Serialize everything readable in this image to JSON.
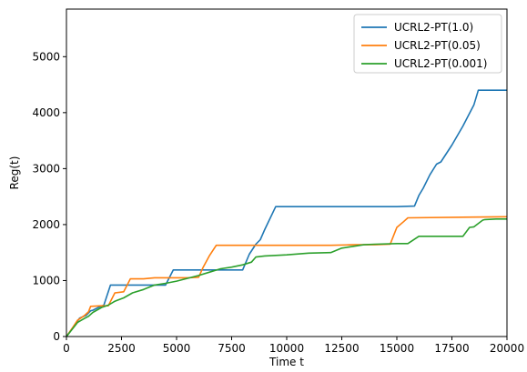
{
  "chart_data": {
    "type": "line",
    "xlabel": "Time t",
    "ylabel": "Reg(t)",
    "xlim": [
      0,
      20000
    ],
    "ylim": [
      0,
      5850
    ],
    "xticks": [
      0,
      2500,
      5000,
      7500,
      10000,
      12500,
      15000,
      17500,
      20000
    ],
    "yticks": [
      0,
      1000,
      2000,
      3000,
      4000,
      5000
    ],
    "grid": false,
    "legend_position": "top-right",
    "series": [
      {
        "name": "UCRL2-PT(1.0)",
        "color": "#1f77b4",
        "x": [
          0,
          300,
          600,
          900,
          1100,
          1200,
          1500,
          1700,
          2000,
          2500,
          3000,
          3500,
          4000,
          4500,
          4850,
          5000,
          5500,
          6000,
          6500,
          7000,
          7500,
          8000,
          8300,
          8600,
          8800,
          9000,
          9500,
          10000,
          11000,
          12000,
          13000,
          14000,
          15000,
          15800,
          16000,
          16200,
          16500,
          16800,
          17000,
          17500,
          18000,
          18500,
          18700,
          19000,
          19500,
          20000
        ],
        "y": [
          0,
          160,
          330,
          380,
          460,
          470,
          530,
          560,
          920,
          920,
          920,
          920,
          920,
          920,
          1190,
          1190,
          1190,
          1190,
          1190,
          1190,
          1190,
          1190,
          1470,
          1650,
          1730,
          1910,
          2320,
          2320,
          2320,
          2320,
          2320,
          2320,
          2320,
          2330,
          2520,
          2650,
          2890,
          3080,
          3120,
          3420,
          3760,
          4140,
          4400,
          4400,
          4400,
          4400
        ]
      },
      {
        "name": "UCRL2-PT(0.05)",
        "color": "#ff7f0e",
        "x": [
          0,
          300,
          500,
          800,
          1000,
          1100,
          1600,
          1900,
          2200,
          2600,
          2900,
          3500,
          4000,
          4500,
          5000,
          5500,
          6000,
          6200,
          6500,
          6800,
          7500,
          8000,
          8500,
          9000,
          10000,
          11000,
          12000,
          13000,
          14000,
          14700,
          15000,
          15300,
          15500,
          20000
        ],
        "y": [
          0,
          170,
          290,
          370,
          440,
          540,
          550,
          550,
          780,
          800,
          1030,
          1030,
          1050,
          1050,
          1050,
          1050,
          1060,
          1230,
          1450,
          1630,
          1630,
          1630,
          1630,
          1630,
          1630,
          1630,
          1630,
          1640,
          1640,
          1650,
          1950,
          2050,
          2120,
          2140
        ]
      },
      {
        "name": "UCRL2-PT(0.001)",
        "color": "#2ca02c",
        "x": [
          0,
          300,
          500,
          800,
          1000,
          1200,
          1600,
          1900,
          2200,
          2600,
          3000,
          3500,
          4000,
          4500,
          5000,
          5500,
          6000,
          6500,
          7000,
          7500,
          8000,
          8400,
          8600,
          9000,
          10000,
          11000,
          12000,
          12500,
          13000,
          13500,
          14000,
          15000,
          15500,
          16000,
          17000,
          18000,
          18300,
          18500,
          18900,
          19000,
          19500,
          20000
        ],
        "y": [
          0,
          150,
          250,
          320,
          360,
          430,
          520,
          560,
          630,
          690,
          780,
          840,
          920,
          950,
          990,
          1040,
          1090,
          1150,
          1210,
          1240,
          1280,
          1330,
          1420,
          1440,
          1460,
          1490,
          1500,
          1580,
          1610,
          1640,
          1650,
          1660,
          1660,
          1790,
          1790,
          1790,
          1950,
          1960,
          2080,
          2090,
          2100,
          2100
        ]
      }
    ]
  }
}
